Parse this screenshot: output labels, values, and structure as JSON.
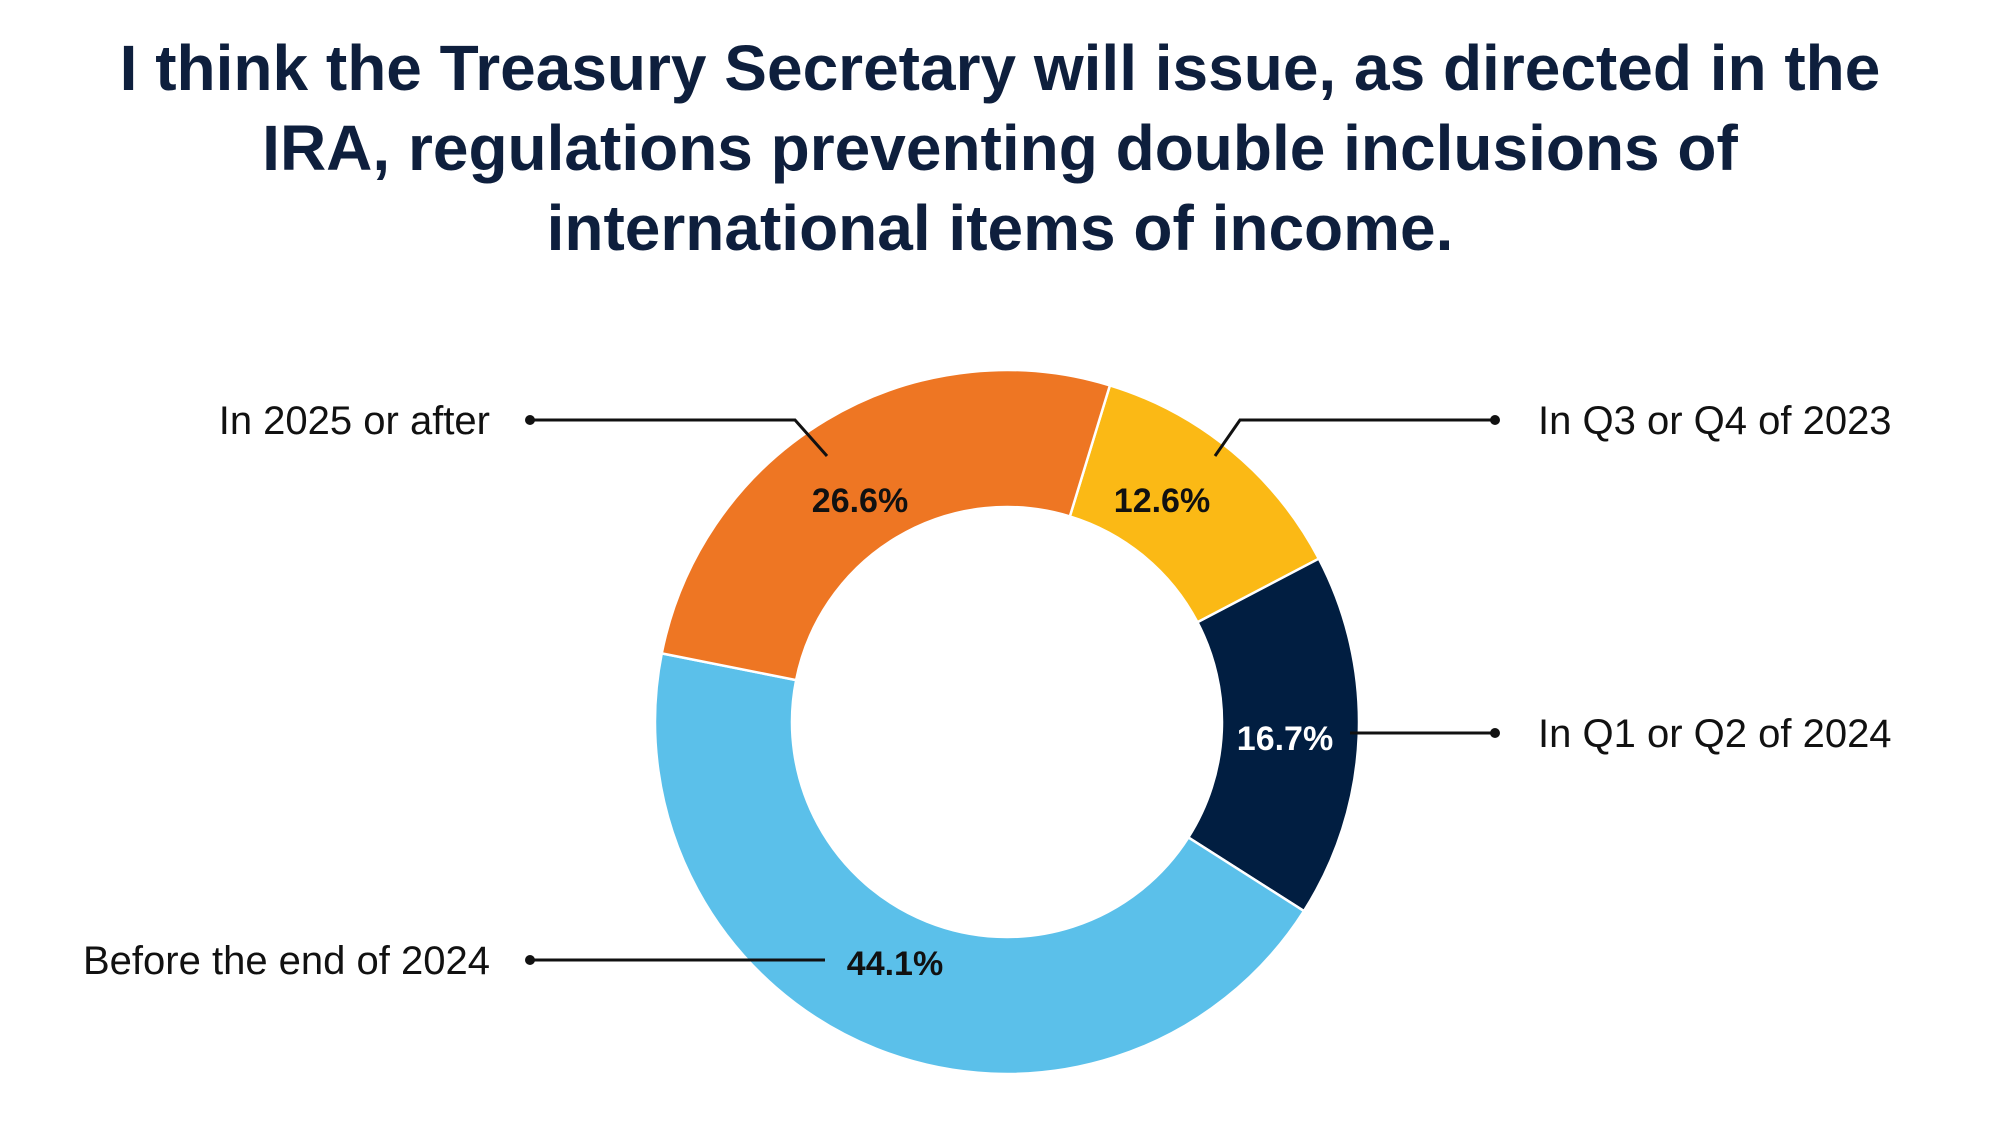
{
  "chart_data": {
    "type": "pie",
    "title": "I think the Treasury Secretary will issue, as directed in the IRA, regulations preventing double inclusions of international items of income.",
    "categories": [
      "In Q3 or Q4 of 2023",
      "In Q1 or Q2 of 2024",
      "Before the end of 2024",
      "In 2025 or after"
    ],
    "values": [
      12.6,
      16.7,
      44.1,
      26.6
    ],
    "value_labels": [
      "12.6%",
      "16.7%",
      "44.1%",
      "26.6%"
    ],
    "colors": [
      "#fbb915",
      "#011e41",
      "#5bc0ea",
      "#ee7623"
    ],
    "value_label_colors": [
      "#111111",
      "#ffffff",
      "#111111",
      "#111111"
    ],
    "style": "donut",
    "start_angle_deg": 17,
    "direction": "clockwise",
    "legend": "callout labels"
  }
}
